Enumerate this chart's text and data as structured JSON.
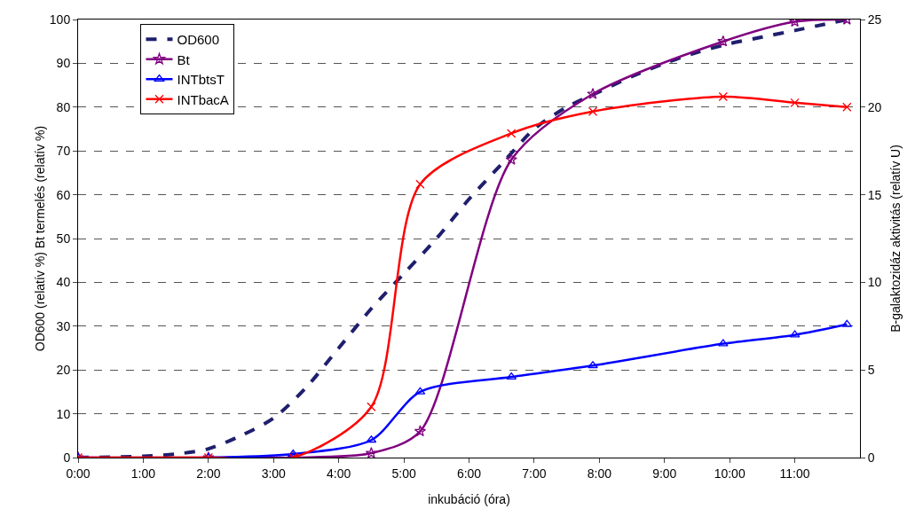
{
  "chart_data": {
    "type": "line",
    "xlabel": "inkubáció (óra)",
    "ylabel": "OD600 (relatív %) Bt termelés (relatív %)",
    "y2label": "B-galaktozidáz aktivitás (relatív U)",
    "xlim": [
      0,
      12
    ],
    "xticks": [
      {
        "value": 0,
        "label": "0:00"
      },
      {
        "value": 1,
        "label": "1:00"
      },
      {
        "value": 2,
        "label": "2:00"
      },
      {
        "value": 3,
        "label": "3:00"
      },
      {
        "value": 4,
        "label": "4:00"
      },
      {
        "value": 5,
        "label": "5:00"
      },
      {
        "value": 6,
        "label": "6:00"
      },
      {
        "value": 7,
        "label": "7:00"
      },
      {
        "value": 8,
        "label": "8:00"
      },
      {
        "value": 9,
        "label": "9:00"
      },
      {
        "value": 10,
        "label": "10:00"
      },
      {
        "value": 11,
        "label": "11:00"
      }
    ],
    "ylim": [
      0,
      100
    ],
    "yticks": [
      0,
      10,
      20,
      30,
      40,
      50,
      60,
      70,
      80,
      90,
      100
    ],
    "y2lim": [
      0,
      25
    ],
    "y2ticks": [
      0,
      5,
      10,
      15,
      20,
      25
    ],
    "grid": "y",
    "legend": "top left",
    "series": [
      {
        "name": "OD600",
        "color": "#1f1f6e",
        "marker": "none",
        "line_style": "dashed",
        "x": [
          0,
          1,
          1.5,
          2,
          2.5,
          3,
          3.5,
          4,
          4.5,
          5,
          5.5,
          6,
          6.5,
          7,
          7.5,
          8,
          8.5,
          9,
          9.5,
          10,
          10.5,
          11,
          11.8
        ],
        "values": [
          0,
          0.3,
          0.8,
          2,
          5,
          9,
          16,
          25,
          34,
          42,
          50,
          59,
          67,
          75,
          80,
          83.5,
          87,
          90,
          92.5,
          94.5,
          96,
          97.5,
          100
        ]
      },
      {
        "name": "Bt",
        "color": "#800080",
        "marker": "star",
        "line_style": "solid",
        "x": [
          0,
          2,
          3.3,
          4.5,
          5.25,
          6.65,
          7.9,
          9.9,
          11,
          11.8
        ],
        "values": [
          0,
          0,
          0,
          1,
          6,
          68,
          83,
          95,
          99.5,
          100
        ]
      },
      {
        "name": "INTbtsT",
        "color": "#0000ff",
        "marker": "triangle",
        "line_style": "solid",
        "axis": "y2",
        "x": [
          0,
          2,
          3.3,
          4.5,
          5.25,
          6.65,
          7.9,
          9.9,
          11,
          11.8
        ],
        "values": [
          0,
          0,
          0.2,
          1,
          3.75,
          4.6,
          5.25,
          6.5,
          7,
          7.6
        ]
      },
      {
        "name": "INTbacA",
        "color": "#ff0000",
        "marker": "cross",
        "line_style": "solid",
        "axis": "y2",
        "x": [
          0,
          2,
          3.3,
          4.5,
          5.25,
          6.65,
          7.9,
          9.9,
          11,
          11.8
        ],
        "values": [
          0,
          0,
          0,
          2.9,
          15.6,
          18.5,
          19.75,
          20.6,
          20.25,
          20
        ]
      }
    ]
  }
}
